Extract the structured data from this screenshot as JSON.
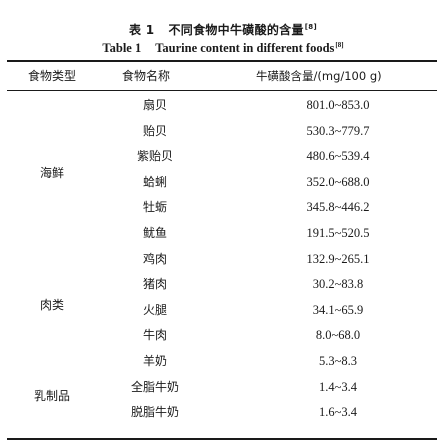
{
  "caption": {
    "cn_label": "表 1",
    "cn_title": "不同食物中牛磺酸的含量",
    "en_label": "Table 1",
    "en_title": "Taurine content in different foods",
    "ref": "[8]"
  },
  "headers": {
    "type": "食物类型",
    "name": "食物名称",
    "content": "牛磺酸含量/(mg/100 g)"
  },
  "groups": [
    "海鲜",
    "肉类",
    "乳制品"
  ],
  "rows": [
    {
      "name": "扇贝",
      "value": "801.0~853.0"
    },
    {
      "name": "贻贝",
      "value": "530.3~779.7"
    },
    {
      "name": "紫贻贝",
      "value": "480.6~539.4"
    },
    {
      "name": "蛤蜊",
      "value": "352.0~688.0"
    },
    {
      "name": "牡蛎",
      "value": "345.8~446.2"
    },
    {
      "name": "鱿鱼",
      "value": "191.5~520.5"
    },
    {
      "name": "鸡肉",
      "value": "132.9~265.1"
    },
    {
      "name": "猪肉",
      "value": "30.2~83.8"
    },
    {
      "name": "火腿",
      "value": "34.1~65.9"
    },
    {
      "name": "牛肉",
      "value": "8.0~68.0"
    },
    {
      "name": "羊奶",
      "value": "5.3~8.3"
    },
    {
      "name": "全脂牛奶",
      "value": "1.4~3.4"
    },
    {
      "name": "脱脂牛奶",
      "value": "1.6~3.4"
    }
  ]
}
